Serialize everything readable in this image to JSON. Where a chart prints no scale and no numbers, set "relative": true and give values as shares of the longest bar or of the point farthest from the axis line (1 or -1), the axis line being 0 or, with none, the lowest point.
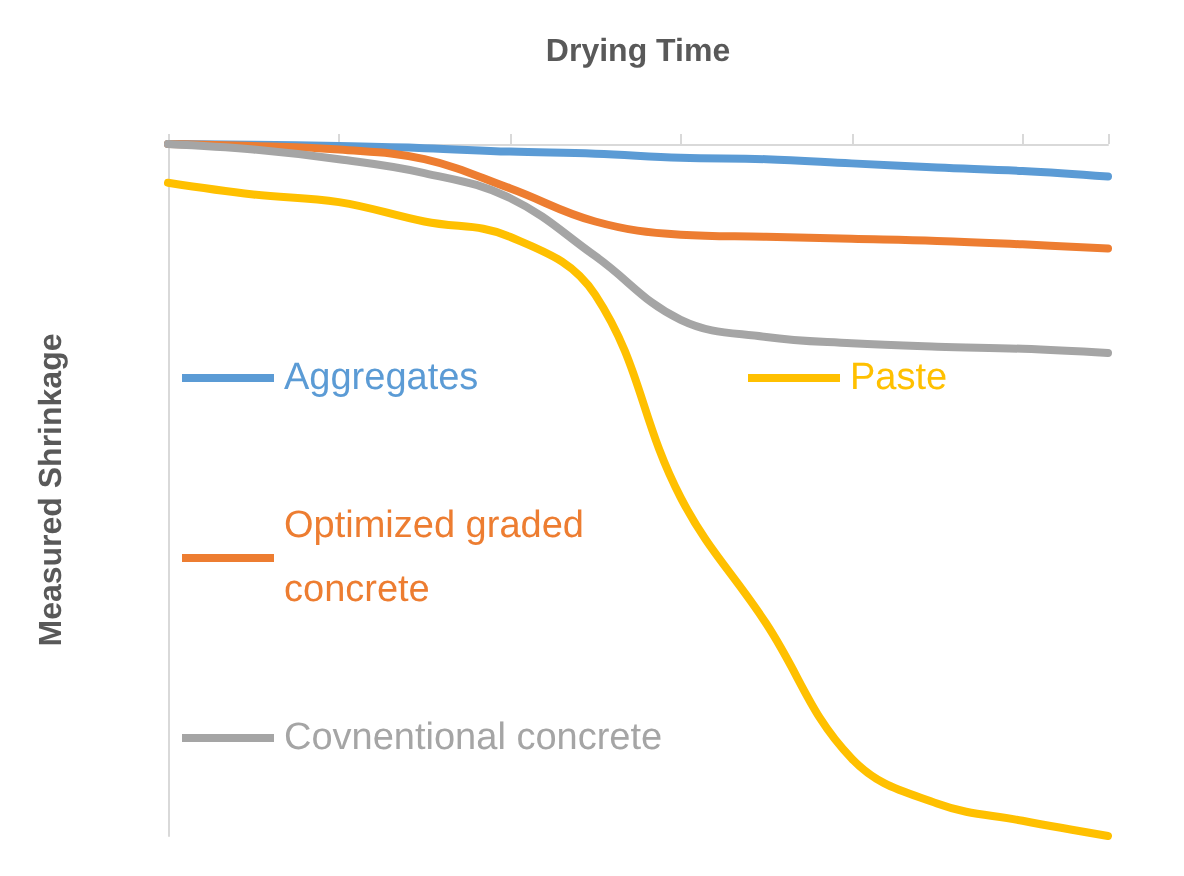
{
  "chart_data": {
    "type": "line",
    "relative": true,
    "xlabel": "Drying Time",
    "ylabel": "Measured Shrinkage",
    "legend": "left",
    "grid": false,
    "marker": "none",
    "line_style": "solid",
    "categories": [
      null,
      null,
      null,
      null,
      null,
      null,
      null,
      null,
      null,
      null,
      null,
      null
    ],
    "series": [
      {
        "name": "Aggregates",
        "color": "#5b9bd5",
        "values": [
          0,
          -0.001,
          -0.003,
          -0.006,
          -0.011,
          -0.014,
          -0.02,
          -0.022,
          -0.028,
          -0.034,
          -0.039,
          -0.047
        ]
      },
      {
        "name": "Optimized graded concrete",
        "color": "#ed7d31",
        "values": [
          0,
          -0.003,
          -0.008,
          -0.022,
          -0.064,
          -0.112,
          -0.131,
          -0.134,
          -0.137,
          -0.14,
          -0.145,
          -0.151
        ]
      },
      {
        "name": "Covnentional concrete",
        "color": "#a5a5a5",
        "values": [
          0,
          -0.008,
          -0.022,
          -0.042,
          -0.078,
          -0.162,
          -0.254,
          -0.279,
          -0.288,
          -0.293,
          -0.296,
          -0.302
        ]
      },
      {
        "name": "Paste",
        "color": "#ffc000",
        "values": [
          -0.056,
          -0.073,
          -0.084,
          -0.112,
          -0.134,
          -0.218,
          -0.511,
          -0.693,
          -0.888,
          -0.953,
          -0.978,
          -1
        ]
      }
    ]
  }
}
